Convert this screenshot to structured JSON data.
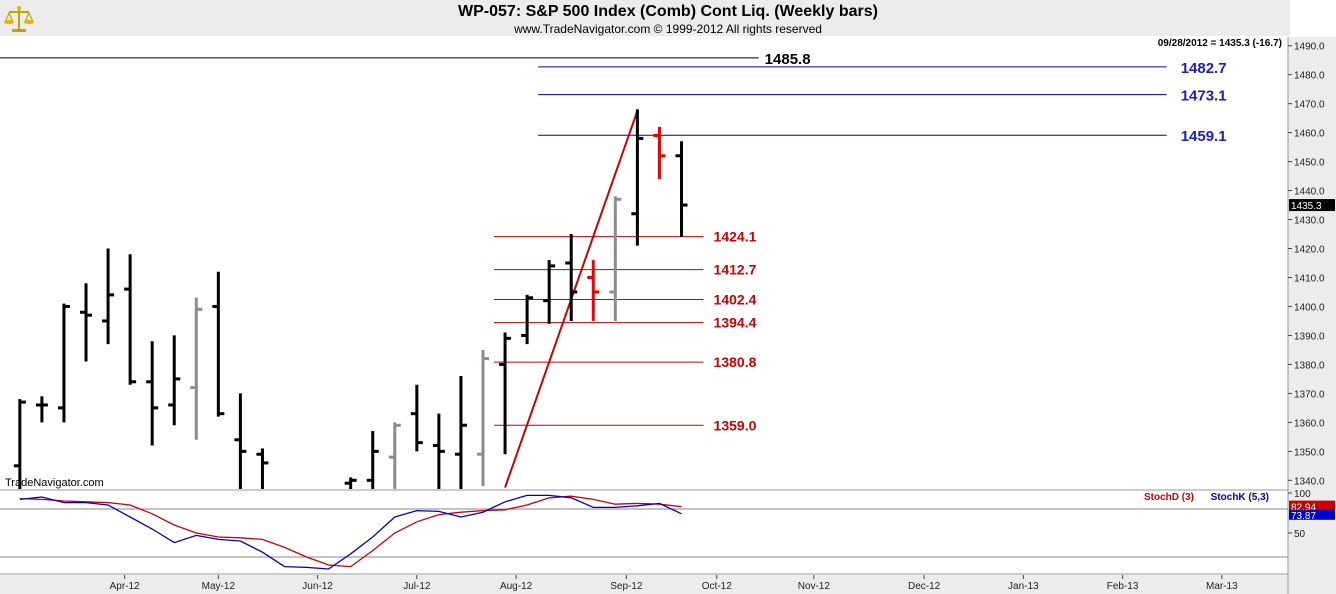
{
  "header": {
    "title": "WP-057:  S&P 500 Index (Comb) Cont Liq.  (Weekly bars)",
    "subtitle": "www.TradeNavigator.com © 1999-2012 All rights reserved",
    "last_value_text": "09/28/2012 = 1435.3 (-16.7)",
    "watermark": "TradeNavigator.com",
    "logo_icon": "scales-icon"
  },
  "chart_data": {
    "type": "ohlc",
    "title": "WP-057:  S&P 500 Index (Comb) Cont Liq.  (Weekly bars)",
    "price_axis": {
      "ylim": [
        1337,
        1493
      ],
      "ticks": [
        1340,
        1350,
        1360,
        1370,
        1380,
        1390,
        1400,
        1410,
        1420,
        1430,
        1440,
        1450,
        1460,
        1470,
        1480,
        1490
      ],
      "tick_labels": [
        "1340.0",
        "1350.0",
        "1360.0",
        "1370.0",
        "1380.0",
        "1390.0",
        "1400.0",
        "1410.0",
        "1420.0",
        "1430.0",
        "1440.0",
        "1450.0",
        "1460.0",
        "1470.0",
        "1480.0",
        "1490.0"
      ],
      "last_price_label": "1435.3"
    },
    "x_axis": {
      "months": [
        "Apr-12",
        "May-12",
        "Jun-12",
        "Jul-12",
        "Aug-12",
        "Sep-12",
        "Oct-12",
        "Nov-12",
        "Dec-12",
        "Jan-13",
        "Feb-13",
        "Mar-13"
      ],
      "month_weeks": [
        4.75,
        9,
        13.5,
        18,
        22.5,
        27.5,
        31.6,
        36,
        41,
        45.5,
        50,
        54.5
      ],
      "week_range": [
        -0.9,
        57.5
      ]
    },
    "bars": [
      {
        "w": 0,
        "o": 1345.0,
        "h": 1368.0,
        "l": 1337.0,
        "c": 1367.0,
        "color": "black"
      },
      {
        "w": 1,
        "o": 1366.0,
        "h": 1369.0,
        "l": 1360.0,
        "c": 1366.0,
        "color": "black"
      },
      {
        "w": 2,
        "o": 1365.0,
        "h": 1401.0,
        "l": 1360.0,
        "c": 1400.0,
        "color": "black"
      },
      {
        "w": 3,
        "o": 1398.0,
        "h": 1408.0,
        "l": 1381.0,
        "c": 1397.0,
        "color": "black"
      },
      {
        "w": 4,
        "o": 1395.0,
        "h": 1420.0,
        "l": 1387.0,
        "c": 1404.0,
        "color": "black"
      },
      {
        "w": 5,
        "o": 1406.0,
        "h": 1418.0,
        "l": 1373.0,
        "c": 1374.0,
        "color": "black"
      },
      {
        "w": 6,
        "o": 1374.0,
        "h": 1388.0,
        "l": 1352.0,
        "c": 1365.0,
        "color": "black"
      },
      {
        "w": 7,
        "o": 1366.0,
        "h": 1390.0,
        "l": 1359.0,
        "c": 1375.0,
        "color": "black"
      },
      {
        "w": 8,
        "o": 1372.0,
        "h": 1403.0,
        "l": 1354.0,
        "c": 1399.0,
        "color": "gray"
      },
      {
        "w": 9,
        "o": 1400.0,
        "h": 1412.0,
        "l": 1362.0,
        "c": 1363.0,
        "color": "black"
      },
      {
        "w": 10,
        "o": 1354.0,
        "h": 1370.0,
        "l": 1337.0,
        "c": 1350.0,
        "color": "black"
      },
      {
        "w": 11,
        "o": 1349.0,
        "h": 1351.0,
        "l": 1337.0,
        "c": 1346.0,
        "color": "black"
      },
      {
        "w": 15,
        "o": 1339.0,
        "h": 1341.0,
        "l": 1337.0,
        "c": 1340.0,
        "color": "black"
      },
      {
        "w": 16,
        "o": 1340.0,
        "h": 1357.0,
        "l": 1337.0,
        "c": 1350.0,
        "color": "black"
      },
      {
        "w": 17,
        "o": 1348.0,
        "h": 1360.0,
        "l": 1337.0,
        "c": 1359.0,
        "color": "gray"
      },
      {
        "w": 18,
        "o": 1363.0,
        "h": 1373.0,
        "l": 1350.0,
        "c": 1353.0,
        "color": "black"
      },
      {
        "w": 19,
        "o": 1352.0,
        "h": 1363.0,
        "l": 1337.0,
        "c": 1350.0,
        "color": "black"
      },
      {
        "w": 20,
        "o": 1349.0,
        "h": 1376.0,
        "l": 1337.0,
        "c": 1359.0,
        "color": "black"
      },
      {
        "w": 21,
        "o": 1349.0,
        "h": 1385.0,
        "l": 1338.0,
        "c": 1382.0,
        "color": "gray"
      },
      {
        "w": 22,
        "o": 1380.0,
        "h": 1391.0,
        "l": 1349.0,
        "c": 1389.0,
        "color": "black"
      },
      {
        "w": 23,
        "o": 1390.0,
        "h": 1404.0,
        "l": 1387.0,
        "c": 1403.0,
        "color": "black"
      },
      {
        "w": 24,
        "o": 1402.0,
        "h": 1416.0,
        "l": 1394.0,
        "c": 1414.0,
        "color": "black"
      },
      {
        "w": 25,
        "o": 1415.0,
        "h": 1425.0,
        "l": 1395.0,
        "c": 1405.0,
        "color": "black"
      },
      {
        "w": 26,
        "o": 1410.0,
        "h": 1416.0,
        "l": 1395.0,
        "c": 1405.0,
        "color": "red"
      },
      {
        "w": 27,
        "o": 1405.0,
        "h": 1438.0,
        "l": 1395.0,
        "c": 1437.0,
        "color": "gray"
      },
      {
        "w": 28,
        "o": 1432.0,
        "h": 1468.0,
        "l": 1421.0,
        "c": 1458.0,
        "color": "black"
      },
      {
        "w": 29,
        "o": 1459.0,
        "h": 1462.0,
        "l": 1444.0,
        "c": 1452.0,
        "color": "red"
      },
      {
        "w": 30,
        "o": 1452.0,
        "h": 1457.0,
        "l": 1424.0,
        "c": 1435.0,
        "color": "black"
      }
    ],
    "trendline": {
      "from": {
        "w": 22,
        "price": 1337.5
      },
      "to": {
        "w": 28,
        "price": 1467.5
      },
      "color": "#cc0000"
    },
    "retracement_levels": [
      {
        "value": 1424.1,
        "label": "1424.1",
        "from_w": 21.5,
        "to_w": 31,
        "color": "#cc0000"
      },
      {
        "value": 1412.7,
        "label": "1412.7",
        "from_w": 21.5,
        "to_w": 31,
        "color": "#cc0000"
      },
      {
        "value": 1402.4,
        "label": "1402.4",
        "from_w": 21.5,
        "to_w": 31,
        "color": "#cc0000"
      },
      {
        "value": 1394.4,
        "label": "1394.4",
        "from_w": 21.5,
        "to_w": 31,
        "color": "#cc0000"
      },
      {
        "value": 1380.8,
        "label": "1380.8",
        "from_w": 21.5,
        "to_w": 31,
        "color": "#cc0000"
      },
      {
        "value": 1359.0,
        "label": "1359.0",
        "from_w": 21.5,
        "to_w": 31,
        "color": "#cc0000"
      }
    ],
    "extension_levels": [
      {
        "value": 1485.8,
        "label": "1485.8",
        "from_w": -0.9,
        "to_w": 33.5,
        "color": "#000000",
        "label_color": "#000000"
      },
      {
        "value": 1482.7,
        "label": "1482.7",
        "from_w": 23.5,
        "to_w": 52,
        "color": "#0000aa",
        "label_color": "#1b1bd6"
      },
      {
        "value": 1473.1,
        "label": "1473.1",
        "from_w": 23.5,
        "to_w": 52,
        "color": "#0000aa",
        "label_color": "#1b1bd6"
      },
      {
        "value": 1459.1,
        "label": "1459.1",
        "from_w": 23.5,
        "to_w": 52,
        "color": "#0000aa",
        "label_color": "#1b1bd6"
      }
    ],
    "stochastic": {
      "ylim": [
        0,
        100
      ],
      "ticks": [
        100,
        50
      ],
      "reference_levels": [
        80,
        20
      ],
      "last_labels": {
        "stochD": "82.94",
        "stochK": "73.87"
      },
      "legend": [
        {
          "name": "StochD (3)",
          "color": "#cc0000"
        },
        {
          "name": "StochK (5,3)",
          "color": "#0000cc"
        }
      ],
      "stochD": {
        "w": [
          0,
          1,
          2,
          3,
          4,
          5,
          6,
          7,
          8,
          9,
          10,
          11,
          12,
          13,
          14,
          15,
          16,
          17,
          18,
          19,
          20,
          21,
          22,
          23,
          24,
          25,
          26,
          27,
          28,
          29,
          30
        ],
        "values": [
          93,
          92,
          90,
          89,
          88,
          85,
          74,
          60,
          50,
          45,
          44,
          42,
          32,
          20,
          10,
          8,
          28,
          50,
          64,
          73,
          76,
          78,
          79,
          85,
          94,
          96,
          92,
          86,
          87,
          86,
          83
        ]
      },
      "stochK": {
        "w": [
          0,
          1,
          2,
          3,
          4,
          5,
          6,
          7,
          8,
          9,
          10,
          11,
          12,
          13,
          14,
          15,
          16,
          17,
          18,
          19,
          20,
          21,
          22,
          23,
          24,
          25,
          26,
          27,
          28,
          29,
          30
        ],
        "values": [
          92,
          95,
          88,
          88,
          85,
          70,
          55,
          38,
          47,
          42,
          40,
          26,
          8,
          7,
          5,
          24,
          45,
          70,
          78,
          77,
          70,
          76,
          89,
          97,
          97,
          94,
          82,
          82,
          84,
          87,
          74
        ]
      }
    }
  }
}
